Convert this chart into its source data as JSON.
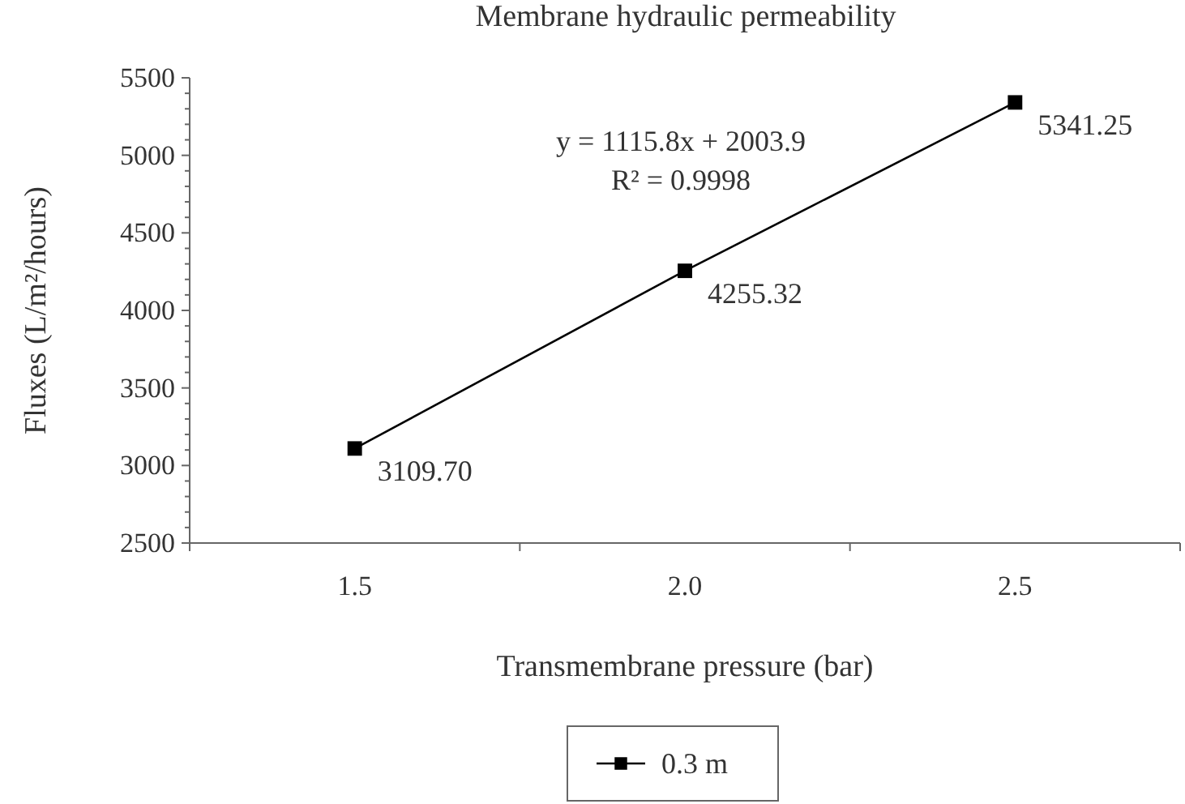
{
  "chart_data": {
    "type": "line",
    "title": "Membrane hydraulic permeability",
    "xlabel": "Transmembrane pressure (bar)",
    "ylabel": "Fluxes (L/m²/hours)",
    "categories": [
      "1.5",
      "2.0",
      "2.5"
    ],
    "series": [
      {
        "name": "0.3 m",
        "color": "#000000",
        "values": [
          3109.7,
          4255.32,
          5341.25
        ],
        "value_labels": [
          "3109.70",
          "4255.32",
          "5341.25"
        ]
      }
    ],
    "ylim": [
      2500,
      5500
    ],
    "yticks": [
      2500,
      {
        "value": 2600,
        "label": null
      },
      {
        "value": 2700,
        "label": null
      },
      {
        "value": 2800,
        "label": null
      },
      {
        "value": 2900,
        "label": null
      },
      3000,
      {
        "value": 3100,
        "label": null
      },
      {
        "value": 3200,
        "label": null
      },
      {
        "value": 3300,
        "label": null
      },
      {
        "value": 3400,
        "label": null
      },
      3500,
      {
        "value": 3600,
        "label": null
      },
      {
        "value": 3700,
        "label": null
      },
      {
        "value": 3800,
        "label": null
      },
      {
        "value": 3900,
        "label": null
      },
      4000,
      {
        "value": 4100,
        "label": null
      },
      {
        "value": 4200,
        "label": null
      },
      {
        "value": 4300,
        "label": null
      },
      {
        "value": 4400,
        "label": null
      },
      4500,
      {
        "value": 4600,
        "label": null
      },
      {
        "value": 4700,
        "label": null
      },
      {
        "value": 4800,
        "label": null
      },
      {
        "value": 4900,
        "label": null
      },
      5000,
      {
        "value": 5100,
        "label": null
      },
      {
        "value": 5200,
        "label": null
      },
      {
        "value": 5300,
        "label": null
      },
      {
        "value": 5400,
        "label": null
      },
      5500
    ],
    "annotations": [
      "y = 1115.8x + 2003.9",
      "R² = 0.9998"
    ],
    "marker": "square",
    "line_style": "solid",
    "grid": false,
    "legend": "bottom"
  }
}
